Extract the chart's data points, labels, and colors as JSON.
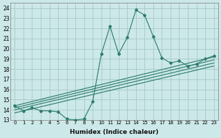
{
  "xlabel": "Humidex (Indice chaleur)",
  "bg_color": "#cce8e8",
  "grid_color": "#aacccc",
  "line_color": "#2e7d6e",
  "xlim": [
    -0.5,
    23.5
  ],
  "ylim": [
    13,
    24.5
  ],
  "xticks": [
    0,
    1,
    2,
    3,
    4,
    5,
    6,
    7,
    8,
    9,
    10,
    11,
    12,
    13,
    14,
    15,
    16,
    17,
    18,
    19,
    20,
    21,
    22,
    23
  ],
  "yticks": [
    13,
    14,
    15,
    16,
    17,
    18,
    19,
    20,
    21,
    22,
    23,
    24
  ],
  "main_x": [
    0,
    1,
    2,
    3,
    4,
    5,
    6,
    7,
    8,
    9,
    10,
    11,
    12,
    13,
    14,
    15,
    16,
    17,
    18,
    19,
    20,
    21,
    22,
    23
  ],
  "main_y": [
    14.4,
    13.9,
    14.2,
    13.9,
    13.9,
    13.8,
    13.1,
    13.0,
    13.1,
    14.8,
    19.5,
    22.2,
    19.5,
    21.1,
    23.8,
    23.3,
    21.2,
    19.1,
    18.6,
    18.8,
    18.3,
    18.5,
    19.0,
    19.3
  ],
  "trend1_x": [
    0,
    23
  ],
  "trend1_y": [
    14.0,
    18.6
  ],
  "trend2_x": [
    0,
    23
  ],
  "trend2_y": [
    14.2,
    18.9
  ],
  "trend3_x": [
    0,
    23
  ],
  "trend3_y": [
    14.4,
    19.2
  ],
  "trend4_x": [
    0,
    23
  ],
  "trend4_y": [
    13.7,
    18.3
  ]
}
